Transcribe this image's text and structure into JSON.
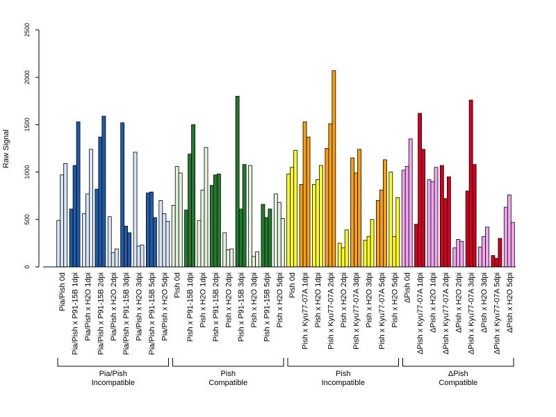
{
  "chart_data": {
    "type": "bar",
    "title": "",
    "xlabel": "",
    "ylabel": "Raw Signal",
    "ylim": [
      0,
      2500
    ],
    "yticks": [
      "0",
      "500",
      "1000",
      "1500",
      "2000",
      "2500"
    ],
    "grid": false,
    "legend": "none",
    "categories": [
      "Pia/Pish 0d",
      "Pia/Pish x P91-15B 1dpi",
      "Pia/Pish x H2O 1dpi",
      "Pia/Pish x P91-15B 2dpi",
      "Pia/Pish x H2O 2dpi",
      "Pia/Pish x P91-15B 3dpi",
      "Pia/Pish x H2O 3dpi",
      "Pia/Pish x P91-15B 5dpi",
      "Pia/Pish x H2O 5dpi",
      "Pish 0d",
      "Pish x P91-15B 1dpi",
      "Pish x H2O 1dpi",
      "Pish x P91-15B 2dpi",
      "Pish x H2O 2dpi",
      "Pish x P91-15B 3dpi",
      "Pish x H2O 3dpi",
      "Pish x P91-15B 5dpi",
      "Pish x H2O 5dpi",
      "Pish 0d",
      "Pish x Kyu77-07A 1dpi",
      "Pish x H2O 1dpi",
      "Pish x Kyu77-07A 2dpi",
      "Pish x H2O 2dpi",
      "Pish x Kyu77-07A 3dpi",
      "Pish x H2O 3dpi",
      "Pish x Kyu77-07A 5dpi",
      "Pish x H2O 5dpi",
      "ΔPish 0d",
      "ΔPish x Kyu77-07A 1dpi",
      "ΔPish x H2O 1dpi",
      "ΔPish x Kyu77-07A 2dpi",
      "ΔPish x H2O 2dpi",
      "ΔPish x Kyu77-07A 3dpi",
      "ΔPish x H2O 3dpi",
      "ΔPish x Kyu77-07A 5dpi",
      "ΔPish x H2O 5dpi"
    ],
    "values": [
      [
        490,
        970,
        1090
      ],
      [
        610,
        1070,
        1530
      ],
      [
        560,
        770,
        1240
      ],
      [
        820,
        1370,
        1590
      ],
      [
        530,
        150,
        190
      ],
      [
        1520,
        430,
        360
      ],
      [
        1210,
        220,
        230
      ],
      [
        780,
        790,
        520
      ],
      [
        700,
        560,
        480
      ],
      [
        650,
        1060,
        990
      ],
      [
        600,
        1190,
        1500
      ],
      [
        490,
        810,
        1260
      ],
      [
        860,
        970,
        980
      ],
      [
        360,
        180,
        190
      ],
      [
        1800,
        610,
        1080
      ],
      [
        1070,
        110,
        160
      ],
      [
        660,
        520,
        610
      ],
      [
        770,
        680,
        510
      ],
      [
        980,
        1050,
        1230
      ],
      [
        870,
        1530,
        1370
      ],
      [
        870,
        920,
        1070
      ],
      [
        1250,
        1510,
        2070
      ],
      [
        250,
        200,
        390
      ],
      [
        1150,
        990,
        1240
      ],
      [
        280,
        320,
        500
      ],
      [
        700,
        810,
        1130
      ],
      [
        1000,
        320,
        730
      ],
      [
        1020,
        1060,
        1350
      ],
      [
        450,
        1620,
        1240
      ],
      [
        920,
        900,
        1050
      ],
      [
        1070,
        720,
        950
      ],
      [
        200,
        290,
        270
      ],
      [
        800,
        1760,
        1080
      ],
      [
        210,
        320,
        420
      ],
      [
        120,
        90,
        300
      ],
      [
        630,
        760,
        470
      ]
    ],
    "colors": {
      "pia_0d": "#d6e4f5",
      "pia_inf": "#1f5ba6",
      "pia_h2o": "#d6e4f5",
      "pish_compat_0d": "#e3f2dd",
      "pish_compat_inf": "#227a2e",
      "pish_compat_h2o": "#e3f2dd",
      "pish_incompat_0d": "#ffff1f",
      "pish_incompat_inf": "#f5a00c",
      "pish_incompat_h2o": "#ffff1f",
      "dpish_0d": "#f2a6ef",
      "dpish_inf": "#d3001f",
      "dpish_h2o": "#f2a6ef"
    },
    "bar_color_keys": [
      "pia_0d",
      "pia_inf",
      "pia_h2o",
      "pia_inf",
      "pia_h2o",
      "pia_inf",
      "pia_h2o",
      "pia_inf",
      "pia_h2o",
      "pish_compat_0d",
      "pish_compat_inf",
      "pish_compat_h2o",
      "pish_compat_inf",
      "pish_compat_h2o",
      "pish_compat_inf",
      "pish_compat_h2o",
      "pish_compat_inf",
      "pish_compat_h2o",
      "pish_incompat_0d",
      "pish_incompat_inf",
      "pish_incompat_h2o",
      "pish_incompat_inf",
      "pish_incompat_h2o",
      "pish_incompat_inf",
      "pish_incompat_h2o",
      "pish_incompat_inf",
      "pish_incompat_h2o",
      "dpish_0d",
      "dpish_inf",
      "dpish_h2o",
      "dpish_inf",
      "dpish_h2o",
      "dpish_inf",
      "dpish_h2o",
      "dpish_inf",
      "dpish_h2o"
    ],
    "groups": [
      {
        "line1": "Pia/Pish",
        "line2": "Incompatible",
        "start": 0,
        "end": 8
      },
      {
        "line1": "Pish",
        "line2": "Compatible",
        "start": 9,
        "end": 17
      },
      {
        "line1": "Pish",
        "line2": "Incompatible",
        "start": 18,
        "end": 26
      },
      {
        "line1": "ΔPish",
        "line2": "Compatible",
        "start": 27,
        "end": 35
      }
    ]
  }
}
